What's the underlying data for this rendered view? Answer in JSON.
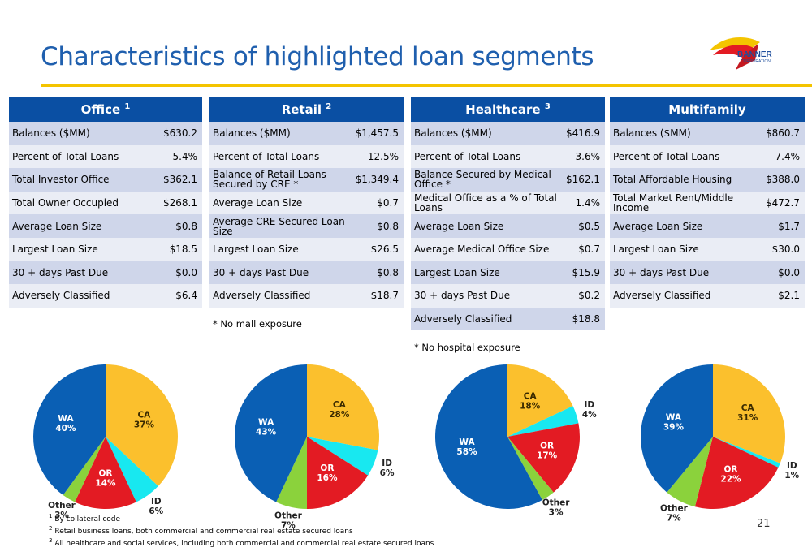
{
  "title": "Characteristics of highlighted loan segments",
  "logo": {
    "line1": "BANNER",
    "line2": "CORPORATION"
  },
  "tables": [
    {
      "title": "Office",
      "sup": "1",
      "rows": [
        [
          "Balances ($MM)",
          "$630.2"
        ],
        [
          "Percent of Total Loans",
          "5.4%"
        ],
        [
          "Total Investor Office",
          "$362.1"
        ],
        [
          "Total Owner Occupied",
          "$268.1"
        ],
        [
          "Average Loan Size",
          "$0.8"
        ],
        [
          "Largest Loan Size",
          "$18.5"
        ],
        [
          "30 + days Past Due",
          "$0.0"
        ],
        [
          "Adversely Classified",
          "$6.4"
        ]
      ]
    },
    {
      "title": "Retail",
      "sup": "2",
      "rows": [
        [
          "Balances ($MM)",
          "$1,457.5"
        ],
        [
          "Percent of Total Loans",
          "12.5%"
        ],
        [
          "Balance of Retail Loans Secured by CRE *",
          "$1,349.4"
        ],
        [
          "Average Loan Size",
          "$0.7"
        ],
        [
          "Average CRE Secured Loan Size",
          "$0.8"
        ],
        [
          "Largest Loan Size",
          "$26.5"
        ],
        [
          "30 + days Past Due",
          "$0.8"
        ],
        [
          "Adversely Classified",
          "$18.7"
        ]
      ]
    },
    {
      "title": "Healthcare",
      "sup": "3",
      "rows": [
        [
          "Balances ($MM)",
          "$416.9"
        ],
        [
          "Percent of Total Loans",
          "3.6%"
        ],
        [
          "Balance Secured by Medical Office *",
          "$162.1"
        ],
        [
          "Medical Office as a % of Total Loans",
          "1.4%"
        ],
        [
          "Average Loan Size",
          "$0.5"
        ],
        [
          "Average Medical Office Size",
          "$0.7"
        ],
        [
          "Largest Loan Size",
          "$15.9"
        ],
        [
          "30 + days Past Due",
          "$0.2"
        ],
        [
          "Adversely Classified",
          "$18.8"
        ]
      ]
    },
    {
      "title": "Multifamily",
      "sup": "",
      "rows": [
        [
          "Balances ($MM)",
          "$860.7"
        ],
        [
          "Percent of Total Loans",
          "7.4%"
        ],
        [
          "Total Affordable Housing",
          "$388.0"
        ],
        [
          "Total Market Rent/Middle Income",
          "$472.7"
        ],
        [
          "Average Loan Size",
          "$1.7"
        ],
        [
          "Largest Loan Size",
          "$30.0"
        ],
        [
          "30 + days Past Due",
          "$0.0"
        ],
        [
          "Adversely Classified",
          "$2.1"
        ]
      ]
    }
  ],
  "notes": {
    "retail": "* No mall exposure",
    "healthcare": "* No hospital exposure"
  },
  "chart_data": [
    {
      "type": "pie",
      "segment": "Office",
      "slices": [
        {
          "label": "CA",
          "value": 37,
          "color": "#fbc02d"
        },
        {
          "label": "ID",
          "value": 6,
          "color": "#18e8f0"
        },
        {
          "label": "OR",
          "value": 14,
          "color": "#e31b23"
        },
        {
          "label": "Other",
          "value": 3,
          "color": "#8bd23c"
        },
        {
          "label": "WA",
          "value": 40,
          "color": "#0a5fb4"
        }
      ]
    },
    {
      "type": "pie",
      "segment": "Retail",
      "slices": [
        {
          "label": "CA",
          "value": 28,
          "color": "#fbc02d"
        },
        {
          "label": "ID",
          "value": 6,
          "color": "#18e8f0"
        },
        {
          "label": "OR",
          "value": 16,
          "color": "#e31b23"
        },
        {
          "label": "Other",
          "value": 7,
          "color": "#8bd23c"
        },
        {
          "label": "WA",
          "value": 43,
          "color": "#0a5fb4"
        }
      ]
    },
    {
      "type": "pie",
      "segment": "Healthcare",
      "slices": [
        {
          "label": "CA",
          "value": 18,
          "color": "#fbc02d"
        },
        {
          "label": "ID",
          "value": 4,
          "color": "#18e8f0"
        },
        {
          "label": "OR",
          "value": 17,
          "color": "#e31b23"
        },
        {
          "label": "Other",
          "value": 3,
          "color": "#8bd23c"
        },
        {
          "label": "WA",
          "value": 58,
          "color": "#0a5fb4"
        }
      ]
    },
    {
      "type": "pie",
      "segment": "Multifamily",
      "slices": [
        {
          "label": "CA",
          "value": 31,
          "color": "#fbc02d"
        },
        {
          "label": "ID",
          "value": 1,
          "color": "#18e8f0"
        },
        {
          "label": "OR",
          "value": 22,
          "color": "#e31b23"
        },
        {
          "label": "Other",
          "value": 7,
          "color": "#8bd23c"
        },
        {
          "label": "WA",
          "value": 39,
          "color": "#0a5fb4"
        }
      ]
    }
  ],
  "footnotes": [
    {
      "sup": "1",
      "text": "By collateral code"
    },
    {
      "sup": "2",
      "text": "Retail business loans, both commercial and commercial real estate secured loans"
    },
    {
      "sup": "3",
      "text": "All healthcare and social services, including both commercial and commercial real estate secured loans"
    }
  ],
  "page_number": "21"
}
